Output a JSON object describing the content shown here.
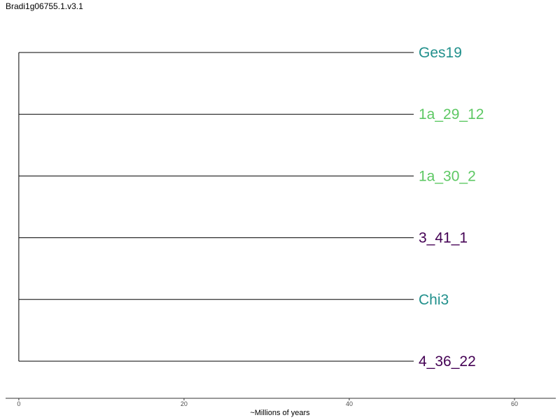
{
  "chart_data": {
    "type": "dendrogram",
    "title": "Bradi1g06755.1.v3.1",
    "xlabel": "~Millions of years",
    "xlim": [
      -1.6,
      65
    ],
    "xticks": [
      0,
      20,
      40,
      60
    ],
    "tick_labels": [
      "0",
      "20",
      "40",
      "60"
    ],
    "grid": false,
    "root_x": 0,
    "tips": [
      {
        "label": "Ges19",
        "x": 47.8,
        "color": "#21908C"
      },
      {
        "label": "1a_29_12",
        "x": 47.8,
        "color": "#5DC863"
      },
      {
        "label": "1a_30_2",
        "x": 47.8,
        "color": "#5DC863"
      },
      {
        "label": "3_41_1",
        "x": 47.8,
        "color": "#440154"
      },
      {
        "label": "Chi3",
        "x": 47.8,
        "color": "#21908C"
      },
      {
        "label": "4_36_22",
        "x": 47.8,
        "color": "#440154"
      }
    ]
  }
}
